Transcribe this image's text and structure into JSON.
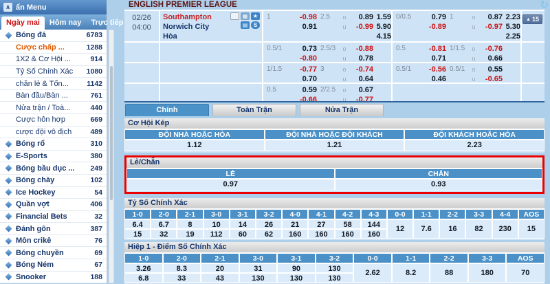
{
  "colors": {
    "accent_blue": "#4b90c6",
    "panel_blue": "#cfe3f6",
    "value_blue": "#dcebf9",
    "negative_red": "#cc1111",
    "highlight_border": "#ea0000",
    "navy_text": "#15356b",
    "orange_item": "#e05a00"
  },
  "sidebar": {
    "header": {
      "collapse_icon": "∧",
      "title": "ẩn Menu"
    },
    "tabs": [
      {
        "label": "Ngày mai",
        "active": true
      },
      {
        "label": "Hôm nay",
        "active": false
      },
      {
        "label": "Trực tiếp",
        "active": false
      }
    ],
    "items": [
      {
        "type": "category",
        "label": "Bóng đá",
        "count": "6783"
      },
      {
        "type": "sub",
        "label": "Cược chấp ...",
        "count": "1288",
        "highlight": true
      },
      {
        "type": "sub",
        "label": "1X2 & Cơ Hội ...",
        "count": "914"
      },
      {
        "type": "sub",
        "label": "Tỷ Số Chính Xác",
        "count": "1080"
      },
      {
        "type": "sub",
        "label": "chẵn lẻ & Tổn...",
        "count": "1142"
      },
      {
        "type": "sub",
        "label": "Bàn đầu/Bàn ...",
        "count": "761"
      },
      {
        "type": "sub",
        "label": "Nửa trận / Toà...",
        "count": "440"
      },
      {
        "type": "sub",
        "label": "Cược hỗn hợp",
        "count": "669"
      },
      {
        "type": "sub",
        "label": "cược đội vô địch",
        "count": "489"
      },
      {
        "type": "category",
        "label": "Bóng rổ",
        "count": "310"
      },
      {
        "type": "category",
        "label": "E-Sports",
        "count": "380"
      },
      {
        "type": "category",
        "label": "Bóng bầu dục ...",
        "count": "249"
      },
      {
        "type": "category",
        "label": "Bóng chày",
        "count": "102"
      },
      {
        "type": "category",
        "label": "Ice Hockey",
        "count": "54"
      },
      {
        "type": "category",
        "label": "Quần vợt",
        "count": "406"
      },
      {
        "type": "category",
        "label": "Financial Bets",
        "count": "32"
      },
      {
        "type": "category",
        "label": "Đánh gôn",
        "count": "387"
      },
      {
        "type": "category",
        "label": "Môn crikê",
        "count": "76"
      },
      {
        "type": "category",
        "label": "Bóng chuyền",
        "count": "69"
      },
      {
        "type": "category",
        "label": "Bóng Ném",
        "count": "67"
      },
      {
        "type": "category",
        "label": "Snooker",
        "count": "188"
      }
    ]
  },
  "main": {
    "league_title": "ENGLISH PREMIER LEAGUE",
    "refresh_icon": "↻",
    "match": {
      "date": "02/26",
      "time": "04:00",
      "home": "Southampton",
      "away": "Norwich City",
      "draw_label": "Hòa",
      "icons": [
        {
          "name": "tv-icon",
          "glyph": "",
          "style": "tv"
        },
        {
          "name": "stats-icon",
          "glyph": "▦",
          "style": "stats"
        },
        {
          "name": "star-icon",
          "glyph": "★",
          "style": "star"
        },
        {
          "name": "notebook-icon",
          "glyph": "▤",
          "style": "notes"
        },
        {
          "name": "s-icon",
          "glyph": "S",
          "style": "s"
        }
      ],
      "more_bets": {
        "arrow": "▲",
        "count": "15"
      }
    },
    "ou_labels": [
      "o",
      "u"
    ],
    "odds_bands": [
      {
        "groups": [
          {
            "hdp": "1",
            "hdp_odds": [
              "-0.98",
              "0.91"
            ],
            "line": "2.5",
            "ou_odds": [
              "0.89",
              "-0.99"
            ],
            "x12": [
              "1.59",
              "5.90",
              "4.15"
            ]
          },
          {
            "hdp": "0/0.5",
            "hdp_odds": [
              "0.79",
              "-0.89"
            ],
            "line": "1",
            "ou_odds": [
              "0.87",
              "-0.97"
            ],
            "x12": [
              "2.23",
              "5.30",
              "2.25"
            ]
          }
        ]
      },
      {
        "groups": [
          {
            "hdp": "0.5/1",
            "hdp_odds": [
              "0.73",
              "-0.80"
            ],
            "line": "2.5/3",
            "ou_odds": [
              "-0.88",
              "0.78"
            ],
            "x12": []
          },
          {
            "hdp": "0.5",
            "hdp_odds": [
              "-0.81",
              "0.71"
            ],
            "line": "1/1.5",
            "ou_odds": [
              "-0.76",
              "0.66"
            ],
            "x12": []
          }
        ]
      },
      {
        "groups": [
          {
            "hdp": "1/1.5",
            "hdp_odds": [
              "-0.77",
              "0.70"
            ],
            "line": "3",
            "ou_odds": [
              "-0.74",
              "0.64"
            ],
            "x12": []
          },
          {
            "hdp": "0.5/1",
            "hdp_odds": [
              "-0.56",
              "0.46"
            ],
            "line": "0.5/1",
            "ou_odds": [
              "0.55",
              "-0.65"
            ],
            "x12": []
          }
        ]
      },
      {
        "groups": [
          {
            "hdp": "0.5",
            "hdp_odds": [
              "0.59",
              "-0.66"
            ],
            "line": "2/2.5",
            "ou_odds": [
              "0.67",
              "-0.77"
            ],
            "x12": []
          },
          null
        ]
      }
    ],
    "tabs": [
      {
        "label": "Chính",
        "active": true
      },
      {
        "label": "Toàn Trận",
        "active": false
      },
      {
        "label": "Nửa Trận",
        "active": false
      }
    ],
    "sections": [
      {
        "kind": "simple",
        "title": "Cơ Hội Kép",
        "highlight": false,
        "columns": [
          "ĐỘI NHÀ HOẶC HÒA",
          "ĐỘI NHÀ HOẶC ĐỘI KHÁCH",
          "ĐỘI KHÁCH HOẶC HÒA"
        ],
        "values": [
          "1.12",
          "1.21",
          "2.23"
        ]
      },
      {
        "kind": "simple",
        "title": "Lẻ/Chẵn",
        "highlight": true,
        "columns": [
          "LẺ",
          "CHẴN"
        ],
        "values": [
          "0.97",
          "0.93"
        ]
      },
      {
        "kind": "score",
        "title": "Tỷ Số Chính Xác",
        "highlight": false,
        "split": 10,
        "columns": [
          "1-0",
          "2-0",
          "2-1",
          "3-0",
          "3-1",
          "3-2",
          "4-0",
          "4-1",
          "4-2",
          "4-3",
          "0-0",
          "1-1",
          "2-2",
          "3-3",
          "4-4",
          "AOS"
        ],
        "row_top": [
          "6.4",
          "6.7",
          "8",
          "10",
          "14",
          "26",
          "21",
          "27",
          "58",
          "144"
        ],
        "row_bottom": [
          "15",
          "32",
          "19",
          "112",
          "60",
          "62",
          "160",
          "160",
          "160",
          "160"
        ],
        "spanned": [
          "12",
          "7.6",
          "16",
          "82",
          "230",
          "15"
        ]
      },
      {
        "kind": "score",
        "title": "Hiệp 1 - Điểm Số Chính Xác",
        "highlight": false,
        "split": 6,
        "columns": [
          "1-0",
          "2-0",
          "2-1",
          "3-0",
          "3-1",
          "3-2",
          "0-0",
          "1-1",
          "2-2",
          "3-3",
          "AOS"
        ],
        "row_top": [
          "3.26",
          "8.3",
          "20",
          "31",
          "90",
          "130"
        ],
        "row_bottom": [
          "6.8",
          "33",
          "43",
          "130",
          "130",
          "130"
        ],
        "spanned": [
          "2.62",
          "8.2",
          "88",
          "180",
          "70"
        ]
      }
    ]
  }
}
